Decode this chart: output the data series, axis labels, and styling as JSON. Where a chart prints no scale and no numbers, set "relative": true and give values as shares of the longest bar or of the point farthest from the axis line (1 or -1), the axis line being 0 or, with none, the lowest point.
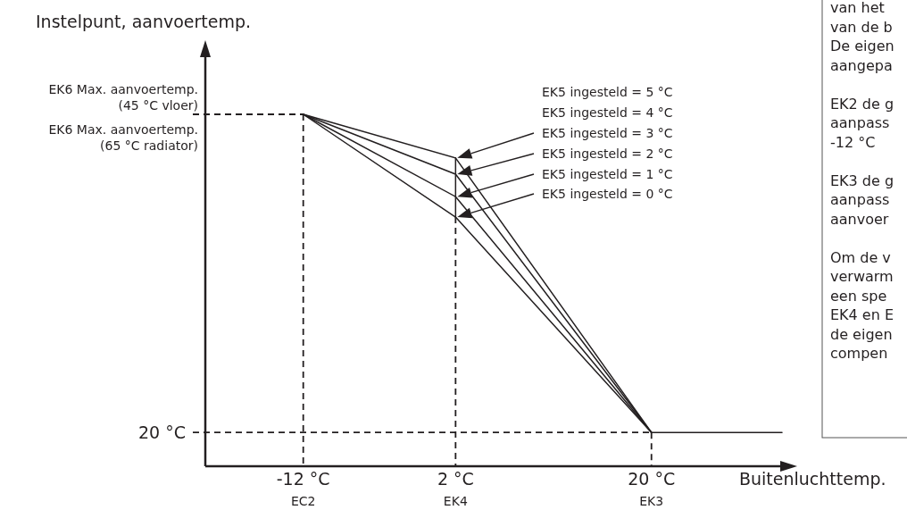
{
  "chart_data": {
    "type": "line",
    "relative": true,
    "ylabel": "Instelpunt, aanvoertemp.",
    "xlabel": "Buitenluchttemp.",
    "xlim": [
      -21,
      32
    ],
    "xticks": [
      {
        "value": -12,
        "label": "-12 °C"
      },
      {
        "value": 2,
        "label": "2 °C"
      },
      {
        "value": 20,
        "label": "20 °C"
      }
    ],
    "series": [
      {
        "color": "#231f20",
        "x": [
          -12,
          2,
          20,
          32
        ],
        "values": [
          1,
          0.708,
          0.096,
          0.096
        ]
      },
      {
        "color": "#231f20",
        "x": [
          -12,
          2,
          20
        ],
        "values": [
          1,
          0.766,
          0.096
        ]
      },
      {
        "color": "#231f20",
        "x": [
          -12,
          2,
          20
        ],
        "values": [
          1,
          0.83,
          0.096
        ]
      },
      {
        "color": "#231f20",
        "x": [
          -12,
          2,
          20
        ],
        "values": [
          1,
          0.876,
          0.096
        ]
      },
      {
        "color": "#231f20",
        "x": [
          2,
          2
        ],
        "values": [
          0.708,
          0.876
        ]
      }
    ],
    "ref_lines": [
      {
        "axis": "y",
        "value": 1,
        "line_style": "dashed"
      },
      {
        "axis": "y",
        "value": 0.096,
        "label": "20 °C",
        "line_style": "dashed"
      },
      {
        "axis": "x",
        "value": -12,
        "line_style": "dashed"
      },
      {
        "axis": "x",
        "value": 2,
        "line_style": "dashed"
      },
      {
        "axis": "x",
        "value": 20,
        "line_style": "dashed"
      }
    ],
    "annotations": [
      "EK5 ingesteld = 5 °C",
      "EK5 ingesteld = 4 °C",
      "EK5 ingesteld = 3 °C",
      "EK5 ingesteld = 2 °C",
      "EK5 ingesteld = 1 °C",
      "EK5 ingesteld = 0 °C",
      "EK6 Max. aanvoertemp.\n(45 °C vloer)",
      "EK6 Max. aanvoertemp.\n(65 °C radiator)",
      "EC2",
      "EK4",
      "EK3",
      "van het\nvan de b\nDe eigen\naangepa\n\nEK2 de g\naanpass\n-12 °C\n\nEK3 de g\naanpass\naanvoer\n\nOm de v\nverwarm\neen spe\nEK4 en E\nde eigen\ncompen"
    ],
    "grid": false,
    "line_style": "solid",
    "marker": "none"
  }
}
